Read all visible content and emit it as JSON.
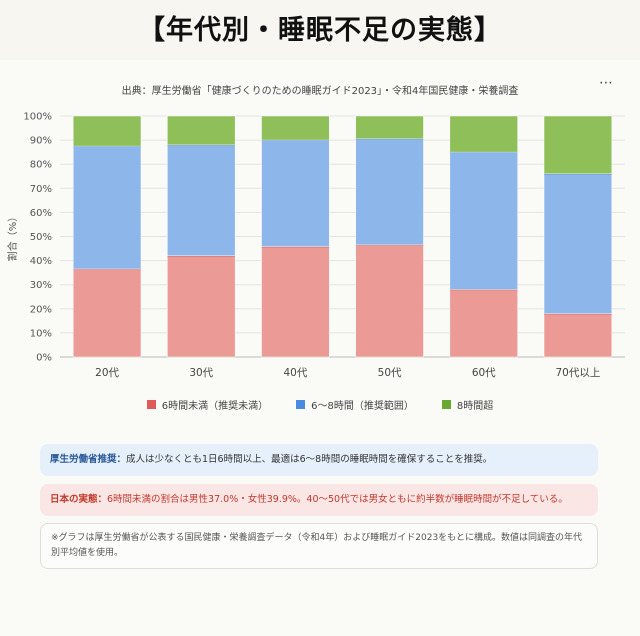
{
  "title": "【年代別・睡眠不足の実態】",
  "subtitle": "出典：厚生労働省「健康づくりのための睡眠ガイド2023」・令和4年国民健康・栄養調査",
  "menu_icon": "⋯",
  "legend": [
    {
      "label": "6時間未満（推奨未満）",
      "color": "#e05a5a"
    },
    {
      "label": "6〜8時間（推奨範囲）",
      "color": "#4a8be0"
    },
    {
      "label": "8時間超",
      "color": "#6aa830"
    }
  ],
  "notes": {
    "recommendation_label": "厚生労働省推奨：",
    "recommendation_text": "成人は少なくとも1日6時間以上、最適は6〜8時間の睡眠時間を確保することを推奨。",
    "reality_label": "日本の実態：",
    "reality_text": "6時間未満の割合は男性37.0%・女性39.9%。40〜50代では男女ともに約半数が睡眠時間が不足している。",
    "source_note": "※グラフは厚生労働省が公表する国民健康・栄養調査データ（令和4年）および睡眠ガイド2023をもとに構成。数値は同調査の年代別平均値を使用。"
  },
  "chart_data": {
    "type": "bar",
    "stacked": true,
    "categories": [
      "20代",
      "30代",
      "40代",
      "50代",
      "60代",
      "70代以上"
    ],
    "series": [
      {
        "name": "6時間未満（推奨未満）",
        "color": "#ec9a95",
        "values": [
          36.5,
          42,
          45.8,
          46.5,
          28,
          18
        ]
      },
      {
        "name": "6〜8時間（推奨範囲）",
        "color": "#8db6ea",
        "values": [
          51,
          46,
          44.2,
          44,
          57,
          58
        ]
      },
      {
        "name": "8時間超",
        "color": "#8fbf58",
        "values": [
          12.5,
          12,
          10,
          9.5,
          15,
          24
        ]
      }
    ],
    "ylabel": "割合（%）",
    "ylim": [
      0,
      100
    ],
    "yticks": [
      "0%",
      "10%",
      "20%",
      "30%",
      "40%",
      "50%",
      "60%",
      "70%",
      "80%",
      "90%",
      "100%"
    ],
    "grid": true,
    "legend_position": "bottom"
  }
}
